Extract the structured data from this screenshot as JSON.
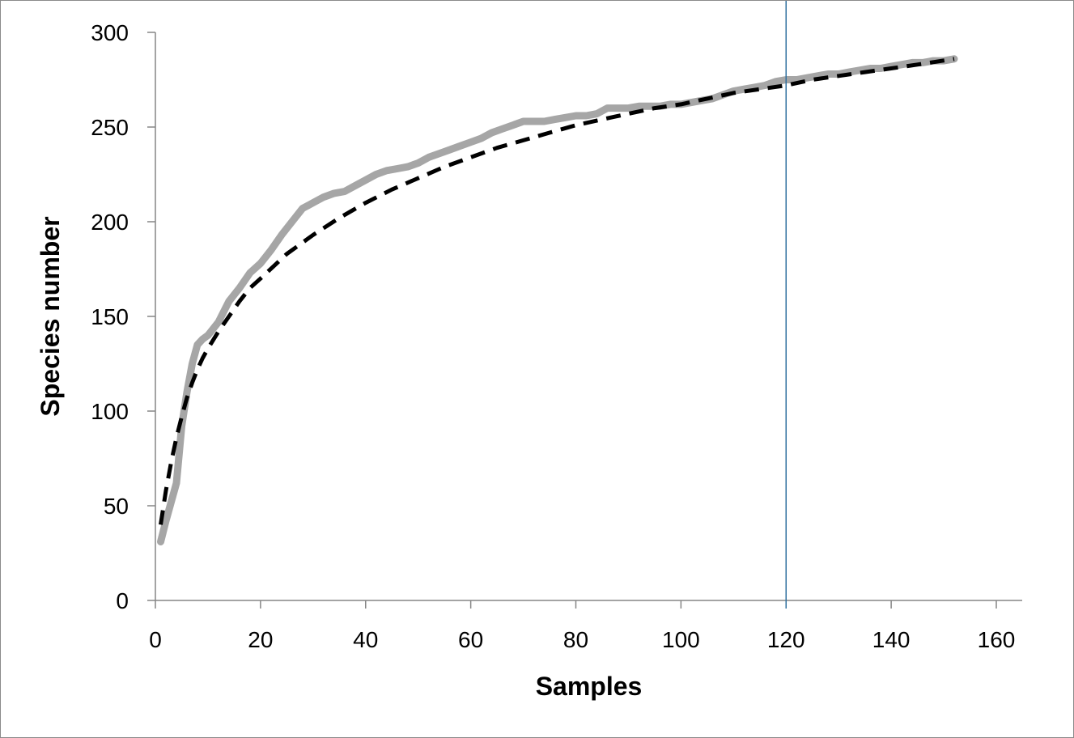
{
  "chart_data": {
    "type": "line",
    "title": "",
    "xlabel": "Samples",
    "ylabel": "Species number",
    "xlim": [
      0,
      160
    ],
    "ylim": [
      0,
      300
    ],
    "xticks": [
      0,
      20,
      40,
      60,
      80,
      100,
      120,
      140,
      160
    ],
    "yticks": [
      0,
      50,
      100,
      150,
      200,
      250,
      300
    ],
    "grid": false,
    "legend": "none",
    "reference_line": {
      "x": 120,
      "color": "#2e6f9e"
    },
    "series": [
      {
        "style": "solid",
        "color": "#a6a6a6",
        "x": [
          1,
          2,
          3,
          4,
          5,
          6,
          7,
          8,
          9,
          10,
          12,
          14,
          16,
          18,
          20,
          22,
          24,
          26,
          28,
          30,
          32,
          34,
          36,
          38,
          40,
          42,
          44,
          46,
          48,
          50,
          52,
          54,
          56,
          58,
          60,
          62,
          64,
          66,
          68,
          70,
          72,
          74,
          76,
          78,
          80,
          82,
          84,
          86,
          88,
          90,
          92,
          94,
          96,
          98,
          100,
          102,
          104,
          106,
          108,
          110,
          112,
          114,
          116,
          118,
          120,
          122,
          124,
          126,
          128,
          130,
          132,
          134,
          136,
          138,
          140,
          142,
          144,
          146,
          148,
          150,
          152
        ],
        "values": [
          31,
          42,
          52,
          62,
          92,
          110,
          125,
          135,
          138,
          140,
          147,
          158,
          165,
          173,
          178,
          185,
          193,
          200,
          207,
          210,
          213,
          215,
          216,
          219,
          222,
          225,
          227,
          228,
          229,
          231,
          234,
          236,
          238,
          240,
          242,
          244,
          247,
          249,
          251,
          253,
          253,
          253,
          254,
          255,
          256,
          256,
          257,
          260,
          260,
          260,
          261,
          261,
          261,
          262,
          262,
          263,
          264,
          265,
          267,
          269,
          270,
          271,
          272,
          274,
          275,
          275,
          276,
          277,
          278,
          278,
          279,
          280,
          281,
          281,
          282,
          283,
          284,
          284,
          285,
          285,
          286
        ]
      },
      {
        "style": "dashed",
        "color": "#000000",
        "x": [
          1,
          2,
          3,
          4,
          5,
          6,
          7,
          8,
          9,
          10,
          12,
          14,
          16,
          18,
          20,
          25,
          30,
          35,
          40,
          45,
          50,
          55,
          60,
          65,
          70,
          75,
          80,
          85,
          90,
          95,
          100,
          105,
          110,
          115,
          120,
          125,
          130,
          135,
          140,
          145,
          152
        ],
        "values": [
          40,
          58,
          73,
          86,
          97,
          107,
          115,
          122,
          128,
          133,
          142,
          150,
          158,
          165,
          170,
          183,
          193,
          202,
          210,
          217,
          223,
          229,
          234,
          239,
          243,
          247,
          251,
          254,
          257,
          260,
          262,
          265,
          268,
          270,
          272,
          275,
          277,
          279,
          281,
          283,
          286
        ]
      }
    ]
  }
}
